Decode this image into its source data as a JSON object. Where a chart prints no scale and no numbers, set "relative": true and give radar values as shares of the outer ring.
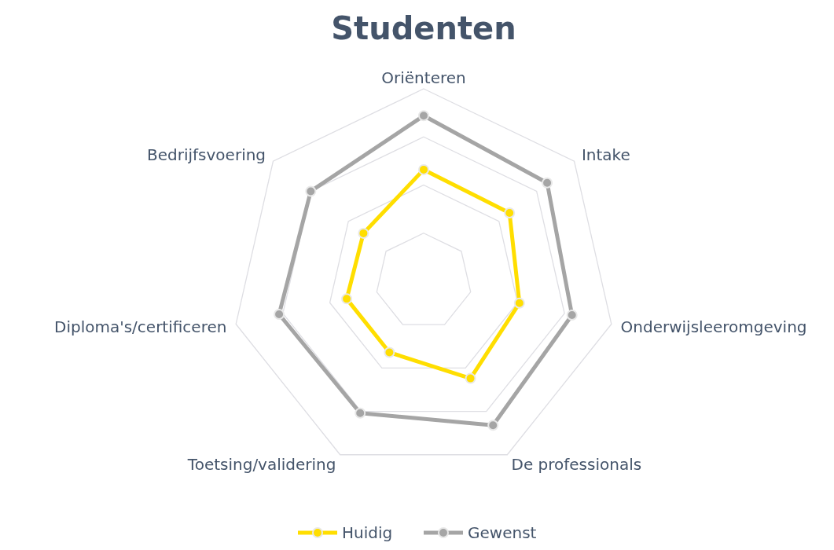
{
  "chart_data": {
    "type": "radar",
    "title": "Studenten",
    "relative": true,
    "grid": true,
    "legend": "bottom",
    "marker": "circle",
    "line_style": "solid",
    "categories": [
      "Oriënteren",
      "Intake",
      "Onderwijsleeromgeving",
      "De professionals",
      "Toetsing/validering",
      "Diploma's/certificeren",
      "Bedrijfsvoering"
    ],
    "series": [
      {
        "name": "Huidig",
        "color": "#ffde00",
        "values": [
          0.58,
          0.57,
          0.51,
          0.56,
          0.41,
          0.41,
          0.4
        ]
      },
      {
        "name": "Gewenst",
        "color": "#a5a5a5",
        "values": [
          0.86,
          0.82,
          0.79,
          0.83,
          0.76,
          0.77,
          0.75
        ]
      }
    ]
  }
}
